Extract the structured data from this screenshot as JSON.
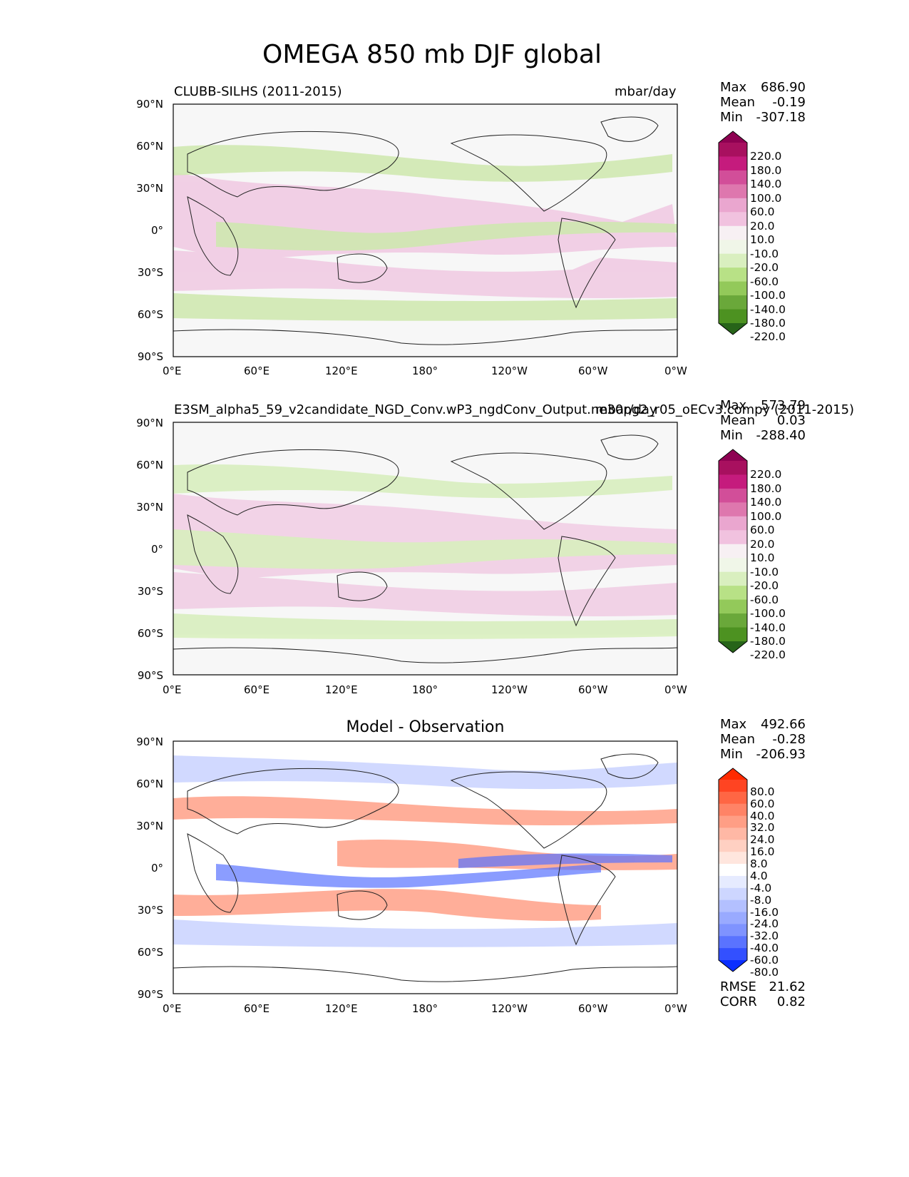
{
  "figure_title": "OMEGA 850 mb DJF global",
  "axes": {
    "lat_ticks": [
      "90°N",
      "60°N",
      "30°N",
      "0°",
      "30°S",
      "60°S",
      "90°S"
    ],
    "lon_ticks": [
      "0°E",
      "60°E",
      "120°E",
      "180°",
      "120°W",
      "60°W",
      "0°W"
    ]
  },
  "panels": [
    {
      "id": "obs",
      "left_title": "CLUBB-SILHS (2011-2015)",
      "center_title": "",
      "right_title": "mbar/day",
      "stats": {
        "max_label": "Max",
        "max": "686.90",
        "mean_label": "Mean",
        "mean": "-0.19",
        "min_label": "Min",
        "min": "-307.18"
      },
      "colorbar": {
        "levels": [
          "220.0",
          "180.0",
          "140.0",
          "100.0",
          "60.0",
          "20.0",
          "10.0",
          "-10.0",
          "-20.0",
          "-60.0",
          "-100.0",
          "-140.0",
          "-180.0",
          "-220.0"
        ],
        "colors": [
          "#8e0152",
          "#a8105f",
          "#c51b7d",
          "#d24e99",
          "#de77ae",
          "#eaa6cf",
          "#f1c2df",
          "#f7f0f3",
          "#f0f6e8",
          "#d9efbf",
          "#b8e186",
          "#93c95a",
          "#6aa83a",
          "#4d9221",
          "#276419"
        ]
      },
      "footer": null
    },
    {
      "id": "model",
      "left_title": "E3SM_alpha5_59_v2candidate_NGD_Conv.wP3_ngdConv_Output.ne30pg2_r05_oECv3.compy (2011-2015)",
      "center_title": "",
      "right_title": "mbar/day",
      "stats": {
        "max_label": "Max",
        "max": "573.79",
        "mean_label": "Mean",
        "mean": "0.03",
        "min_label": "Min",
        "min": "-288.40"
      },
      "colorbar": {
        "levels": [
          "220.0",
          "180.0",
          "140.0",
          "100.0",
          "60.0",
          "20.0",
          "10.0",
          "-10.0",
          "-20.0",
          "-60.0",
          "-100.0",
          "-140.0",
          "-180.0",
          "-220.0"
        ],
        "colors": [
          "#8e0152",
          "#a8105f",
          "#c51b7d",
          "#d24e99",
          "#de77ae",
          "#eaa6cf",
          "#f1c2df",
          "#f7f0f3",
          "#f0f6e8",
          "#d9efbf",
          "#b8e186",
          "#93c95a",
          "#6aa83a",
          "#4d9221",
          "#276419"
        ]
      },
      "footer": null
    },
    {
      "id": "diff",
      "left_title": "",
      "center_title": "Model - Observation",
      "right_title": "",
      "stats": {
        "max_label": "Max",
        "max": "492.66",
        "mean_label": "Mean",
        "mean": "-0.28",
        "min_label": "Min",
        "min": "-206.93"
      },
      "colorbar": {
        "levels": [
          "80.0",
          "60.0",
          "40.0",
          "32.0",
          "24.0",
          "16.0",
          "8.0",
          "4.0",
          "-4.0",
          "-8.0",
          "-16.0",
          "-24.0",
          "-32.0",
          "-40.0",
          "-60.0",
          "-80.0"
        ],
        "colors": [
          "#ff2a00",
          "#ff4422",
          "#ff6644",
          "#ff8366",
          "#ff9e85",
          "#ffb8a5",
          "#ffd0c2",
          "#ffe6de",
          "#ffffff",
          "#e6ebff",
          "#cdd6ff",
          "#b3c0ff",
          "#99aaff",
          "#7f93ff",
          "#5a73ff",
          "#3350ff",
          "#0a2eff"
        ]
      },
      "footer": {
        "rmse_label": "RMSE",
        "rmse": "21.62",
        "corr_label": "CORR",
        "corr": "0.82"
      }
    }
  ],
  "chart_data": {
    "type": "heatmap",
    "title": "OMEGA 850 mb DJF global",
    "units": "mbar/day",
    "x_range_deg_east": [
      0,
      360
    ],
    "y_range_deg_lat": [
      -90,
      90
    ],
    "panels": [
      {
        "name": "CLUBB-SILHS (2011-2015)",
        "max": 686.9,
        "mean": -0.19,
        "min": -307.18,
        "levels": [
          -220,
          -180,
          -140,
          -100,
          -60,
          -20,
          -10,
          10,
          20,
          60,
          100,
          140,
          180,
          220
        ]
      },
      {
        "name": "E3SM_alpha5_59_v2candidate_NGD_Conv.wP3_ngdConv_Output.ne30pg2_r05_oECv3.compy (2011-2015)",
        "max": 573.79,
        "mean": 0.03,
        "min": -288.4,
        "levels": [
          -220,
          -180,
          -140,
          -100,
          -60,
          -20,
          -10,
          10,
          20,
          60,
          100,
          140,
          180,
          220
        ]
      },
      {
        "name": "Model - Observation",
        "max": 492.66,
        "mean": -0.28,
        "min": -206.93,
        "rmse": 21.62,
        "corr": 0.82,
        "levels": [
          -80,
          -60,
          -40,
          -32,
          -24,
          -16,
          -8,
          -4,
          4,
          8,
          16,
          24,
          32,
          40,
          60,
          80
        ]
      }
    ]
  }
}
